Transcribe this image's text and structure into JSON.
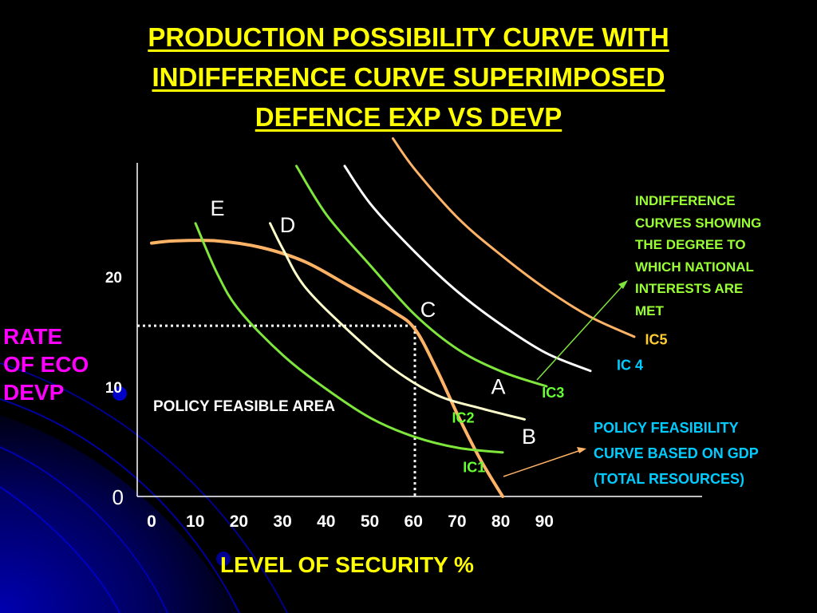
{
  "title_lines": [
    "PRODUCTION POSSIBILITY CURVE WITH",
    "INDIFFERENCE CURVE SUPERIMPOSED",
    "DEFENCE EXP VS DEVP"
  ],
  "y_axis_label_lines": [
    "RATE",
    "OF ECO",
    "DEVP"
  ],
  "x_axis_label": "LEVEL OF SECURITY %",
  "ic_note_lines": [
    "INDIFFERENCE",
    "CURVES SHOWING",
    "THE DEGREE TO",
    "WHICH NATIONAL",
    "INTERESTS ARE",
    "MET"
  ],
  "ppc_note_lines": [
    "POLICY FEASIBILITY",
    "CURVE BASED ON GDP",
    "(TOTAL RESOURCES)"
  ],
  "region_label": "POLICY FEASIBLE AREA",
  "colors": {
    "title": "#ffff00",
    "ylabel": "#ff00ff",
    "ppc": "#ffb366",
    "ic_green": "#7fe63c",
    "ic_white": "#ffffff",
    "ic_light": "#ffffcc",
    "note_green": "#99ff33",
    "note_cyan": "#00ccff",
    "background_blue": "#00007a"
  },
  "chart_data": {
    "type": "line",
    "x_ticks": [
      "0",
      "10",
      "20",
      "30",
      "40",
      "50",
      "60",
      "70",
      "80",
      "90"
    ],
    "y_ticks": [
      {
        "label": "0",
        "value": 0
      },
      {
        "label": "10",
        "value": 10
      },
      {
        "label": "20",
        "value": 20
      }
    ],
    "xlim": [
      0,
      125
    ],
    "ylim": [
      0,
      30
    ],
    "grid": false,
    "series": [
      {
        "name": "POLICY FEASIBILITY CURVE BASED ON GDP",
        "style": "ppc",
        "points": [
          [
            0,
            23
          ],
          [
            5,
            23.2
          ],
          [
            15,
            23.2
          ],
          [
            25,
            22.6
          ],
          [
            35,
            21.3
          ],
          [
            45,
            19.1
          ],
          [
            55,
            16.8
          ],
          [
            60,
            15.2
          ],
          [
            65,
            11.5
          ],
          [
            70,
            7.2
          ],
          [
            75,
            3.3
          ],
          [
            80,
            0
          ]
        ]
      },
      {
        "name": "IC1",
        "style": "ic_green",
        "points": [
          [
            10,
            24.8
          ],
          [
            15,
            20.2
          ],
          [
            20,
            16.9
          ],
          [
            30,
            12.8
          ],
          [
            40,
            9.7
          ],
          [
            50,
            7.1
          ],
          [
            60,
            5.4
          ],
          [
            70,
            4.4
          ],
          [
            80,
            4.0
          ]
        ]
      },
      {
        "name": "IC2",
        "style": "ic_light",
        "points": [
          [
            27,
            24.8
          ],
          [
            30,
            22.4
          ],
          [
            35,
            19
          ],
          [
            45,
            15
          ],
          [
            55,
            11.6
          ],
          [
            65,
            9.2
          ],
          [
            75,
            8.0
          ],
          [
            85,
            7.0
          ]
        ]
      },
      {
        "name": "IC3",
        "style": "ic_green",
        "points": [
          [
            33,
            30
          ],
          [
            40,
            25.5
          ],
          [
            50,
            20.9
          ],
          [
            60,
            16.5
          ],
          [
            70,
            13.3
          ],
          [
            80,
            11.3
          ],
          [
            90,
            10.0
          ]
        ]
      },
      {
        "name": "IC 4",
        "style": "ic_white",
        "points": [
          [
            44,
            30
          ],
          [
            50,
            26.5
          ],
          [
            60,
            22.2
          ],
          [
            70,
            18.5
          ],
          [
            80,
            15.5
          ],
          [
            90,
            13.0
          ],
          [
            100,
            11.4
          ]
        ]
      },
      {
        "name": "IC5",
        "style": "ppc",
        "points": [
          [
            55,
            32.5
          ],
          [
            60,
            29.7
          ],
          [
            70,
            25.2
          ],
          [
            80,
            21.8
          ],
          [
            90,
            18.8
          ],
          [
            100,
            16.3
          ],
          [
            110,
            14.5
          ]
        ]
      }
    ],
    "points": [
      {
        "label": "E",
        "x": 15,
        "y": 25.5
      },
      {
        "label": "D",
        "x": 31,
        "y": 24
      },
      {
        "label": "C",
        "x": 63,
        "y": 16.3
      },
      {
        "label": "A",
        "x": 79,
        "y": 9.3
      },
      {
        "label": "B",
        "x": 86,
        "y": 4.8
      }
    ],
    "curve_labels": [
      {
        "text": "IC5",
        "x": 115,
        "y": 13.8,
        "style": "ic5"
      },
      {
        "text": "IC 4",
        "x": 109,
        "y": 11.5,
        "style": "ic4"
      },
      {
        "text": "IC3",
        "x": 91.5,
        "y": 9.0,
        "style": "ic3"
      },
      {
        "text": "IC2",
        "x": 71,
        "y": 6.7,
        "style": "ic2"
      },
      {
        "text": "IC1",
        "x": 73.5,
        "y": 2.2,
        "style": "ic1"
      }
    ],
    "reference_point": {
      "x": 60,
      "y": 15.5
    }
  }
}
